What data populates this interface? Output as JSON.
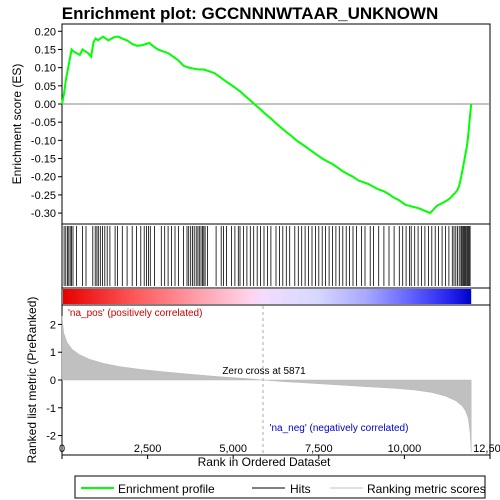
{
  "chart_data": {
    "type": "line",
    "title": "Enrichment plot: GCCNNNWTAAR_UNKNOWN",
    "xlabel": "Rank in Ordered Dataset",
    "top_panel": {
      "ylabel": "Enrichment score (ES)",
      "ylim": [
        -0.33,
        0.22
      ],
      "yticks": [
        0.2,
        0.15,
        0.1,
        0.05,
        0.0,
        -0.05,
        -0.1,
        -0.15,
        -0.2,
        -0.25,
        -0.3
      ],
      "ytick_labels": [
        "0.20",
        "0.15",
        "0.10",
        "0.05",
        "0.00",
        "-0.05",
        "-0.10",
        "-0.15",
        "-0.20",
        "-0.25",
        "-0.30"
      ],
      "series": [
        {
          "name": "Enrichment profile",
          "color": "#00ff00",
          "x": [
            0,
            60,
            120,
            180,
            230,
            280,
            330,
            420,
            520,
            600,
            680,
            760,
            850,
            920,
            980,
            1050,
            1120,
            1200,
            1280,
            1350,
            1450,
            1550,
            1650,
            1750,
            1900,
            2050,
            2200,
            2350,
            2450,
            2550,
            2650,
            2800,
            2950,
            3100,
            3250,
            3400,
            3550,
            3700,
            3850,
            4000,
            4150,
            4300,
            4450,
            4600,
            4750,
            4900,
            5050,
            5200,
            5350,
            5500,
            5650,
            5800,
            5950,
            6100,
            6250,
            6400,
            6550,
            6700,
            6850,
            7000,
            7150,
            7300,
            7450,
            7600,
            7750,
            7900,
            8050,
            8200,
            8350,
            8500,
            8650,
            8800,
            8950,
            9100,
            9250,
            9400,
            9550,
            9700,
            9850,
            9950,
            10050,
            10150,
            10250,
            10350,
            10450,
            10550,
            10650,
            10750,
            10850,
            10950,
            11050,
            11150,
            11250,
            11350,
            11420,
            11480,
            11540,
            11600,
            11660,
            11700,
            11740,
            11780,
            11820,
            11850,
            11880,
            11910,
            11950
          ],
          "y": [
            0.0,
            0.03,
            0.07,
            0.1,
            0.125,
            0.15,
            0.145,
            0.14,
            0.135,
            0.15,
            0.145,
            0.14,
            0.13,
            0.17,
            0.18,
            0.175,
            0.18,
            0.185,
            0.18,
            0.175,
            0.18,
            0.185,
            0.185,
            0.18,
            0.175,
            0.165,
            0.16,
            0.162,
            0.165,
            0.168,
            0.16,
            0.15,
            0.145,
            0.14,
            0.13,
            0.12,
            0.105,
            0.1,
            0.097,
            0.095,
            0.095,
            0.09,
            0.085,
            0.075,
            0.065,
            0.055,
            0.045,
            0.035,
            0.022,
            0.01,
            -0.003,
            -0.015,
            -0.028,
            -0.04,
            -0.053,
            -0.065,
            -0.077,
            -0.088,
            -0.1,
            -0.11,
            -0.12,
            -0.13,
            -0.14,
            -0.15,
            -0.158,
            -0.165,
            -0.175,
            -0.185,
            -0.193,
            -0.2,
            -0.21,
            -0.215,
            -0.22,
            -0.228,
            -0.235,
            -0.24,
            -0.248,
            -0.258,
            -0.265,
            -0.272,
            -0.278,
            -0.28,
            -0.283,
            -0.285,
            -0.288,
            -0.292,
            -0.296,
            -0.3,
            -0.29,
            -0.28,
            -0.275,
            -0.27,
            -0.265,
            -0.258,
            -0.25,
            -0.245,
            -0.238,
            -0.225,
            -0.2,
            -0.18,
            -0.16,
            -0.14,
            -0.12,
            -0.1,
            -0.07,
            -0.04,
            0.0
          ]
        }
      ]
    },
    "hits_panel": {
      "name": "Hits",
      "color": "#000000",
      "hit_ranks": [
        60,
        110,
        160,
        200,
        240,
        280,
        320,
        420,
        600,
        700,
        900,
        970,
        1020,
        1060,
        1120,
        1180,
        1250,
        1320,
        1400,
        1550,
        1620,
        1760,
        1900,
        2050,
        2180,
        2300,
        2400,
        2470,
        2530,
        2580,
        2700,
        2900,
        3000,
        3100,
        3200,
        3300,
        3400,
        3550,
        3650,
        3700,
        3760,
        3810,
        3860,
        3920,
        3970,
        4010,
        4060,
        4100,
        4140,
        4180,
        4250,
        4500,
        4650,
        4720,
        4800,
        4950,
        5050,
        5150,
        5200,
        5300,
        5400,
        5500,
        5600,
        5700,
        5800,
        5900,
        6000,
        6100,
        6250,
        6350,
        6450,
        6550,
        6650,
        6800,
        6900,
        7000,
        7100,
        7200,
        7300,
        7400,
        7500,
        7600,
        7700,
        7800,
        7900,
        8000,
        8100,
        8200,
        8300,
        8400,
        8500,
        8600,
        8750,
        8850,
        9000,
        9100,
        9250,
        9400,
        9550,
        9700,
        9850,
        9950,
        10050,
        10150,
        10200,
        10300,
        10400,
        10500,
        10600,
        10700,
        10800,
        10900,
        11000,
        11100,
        11200,
        11300,
        11400,
        11450,
        11500,
        11550,
        11600,
        11650,
        11680,
        11710,
        11740,
        11770,
        11800,
        11830,
        11860,
        11890,
        11920
      ]
    },
    "metric_panel": {
      "ylabel": "Ranked list metric (PreRanked)",
      "ylim": [
        -2.7,
        2.7
      ],
      "yticks": [
        2,
        1,
        0,
        -1,
        -2
      ],
      "ytick_labels": [
        "2",
        "1",
        "0",
        "-1",
        "-2"
      ],
      "series": [
        {
          "name": "Ranking metric scores",
          "color": "#c0c0c0",
          "x": [
            0,
            50,
            150,
            300,
            500,
            800,
            1200,
            1700,
            2300,
            3000,
            3800,
            4600,
            5400,
            5871,
            6500,
            7300,
            8100,
            8900,
            9700,
            10300,
            10800,
            11200,
            11500,
            11700,
            11800,
            11870,
            11920,
            11950
          ],
          "y": [
            2.3,
            1.7,
            1.35,
            1.1,
            0.92,
            0.75,
            0.6,
            0.48,
            0.38,
            0.29,
            0.2,
            0.12,
            0.05,
            0.0,
            -0.06,
            -0.12,
            -0.18,
            -0.24,
            -0.3,
            -0.36,
            -0.45,
            -0.58,
            -0.75,
            -0.95,
            -1.15,
            -1.4,
            -1.9,
            -2.6
          ]
        }
      ],
      "zero_cross_label": "Zero cross at 5871",
      "zero_cross_rank": 5871,
      "pos_label": "'na_pos' (positively correlated)",
      "neg_label": "'na_neg' (negatively correlated)",
      "pos_label_color": "#cc0000",
      "neg_label_color": "#0000cc"
    },
    "xlim": [
      0,
      12500
    ],
    "xticks": [
      0,
      2500,
      5000,
      7500,
      10000,
      12500
    ],
    "xtick_labels": [
      "0",
      "2,500",
      "5,000",
      "7,500",
      "10,000",
      "12,500"
    ],
    "n_genes": 11950,
    "legend": {
      "placement": "bottom",
      "entries": [
        "Enrichment profile",
        "Hits",
        "Ranking metric scores"
      ]
    }
  }
}
